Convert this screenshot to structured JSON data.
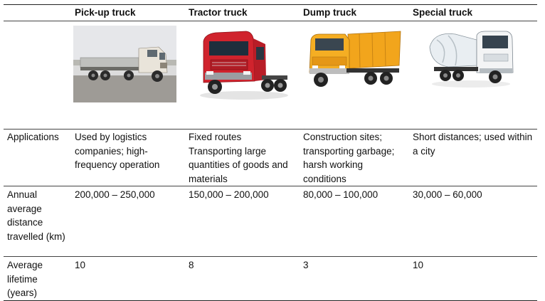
{
  "headers": [
    "",
    "Pick-up truck",
    "Tractor truck",
    "Dump truck",
    "Special truck"
  ],
  "images": [
    {
      "icon": "pickup-truck-photo",
      "color": "#d9d2c8"
    },
    {
      "icon": "tractor-truck-photo",
      "color": "#c8202a"
    },
    {
      "icon": "dump-truck-photo",
      "color": "#f2a51c"
    },
    {
      "icon": "special-truck-photo",
      "color": "#e9ecef"
    }
  ],
  "rows": [
    {
      "label": "Applications",
      "values": [
        "Used by logistics companies; high-frequency operation",
        "Fixed routes Transporting large quantities of goods and materials",
        "Construction sites; transporting garbage; harsh working conditions",
        "Short distances; used within a city"
      ]
    },
    {
      "label": "Annual average distance travelled (km)",
      "values": [
        "200,000 – 250,000",
        "150,000 – 200,000",
        "80,000 – 100,000",
        "30,000 – 60,000"
      ]
    },
    {
      "label": "Average lifetime (years)",
      "values": [
        "10",
        "8",
        "3",
        "10"
      ]
    }
  ]
}
